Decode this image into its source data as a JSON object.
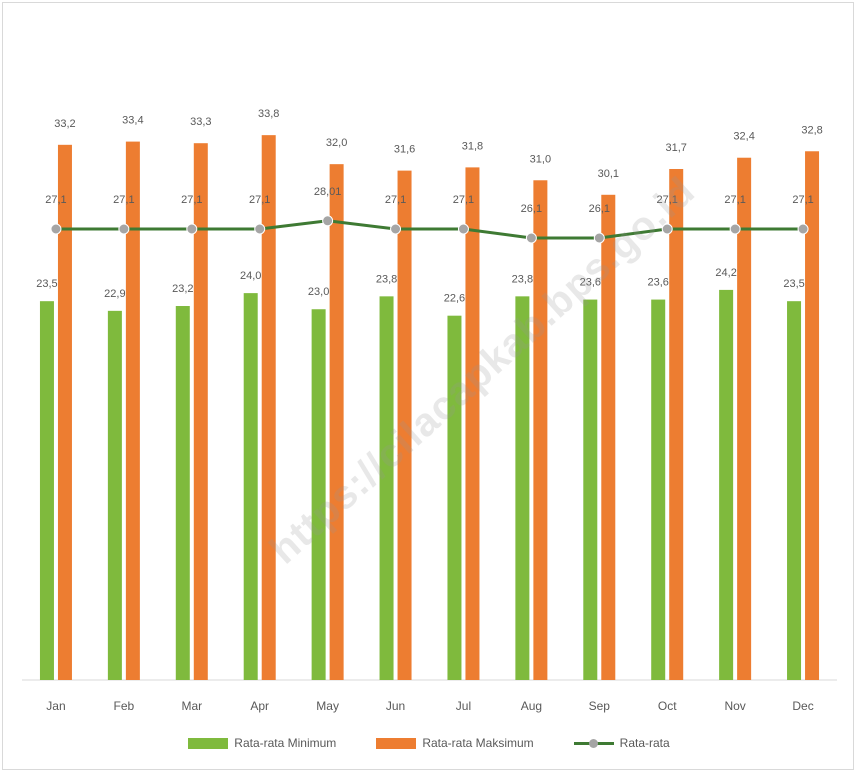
{
  "chart_data": {
    "type": "bar",
    "categories": [
      "Jan",
      "Feb",
      "Mar",
      "Apr",
      "May",
      "Jun",
      "Jul",
      "Aug",
      "Sep",
      "Oct",
      "Nov",
      "Dec"
    ],
    "series": [
      {
        "name": "Rata-rata Minimum",
        "type": "bar",
        "color": "#7fba3d",
        "values": [
          23.5,
          22.9,
          23.2,
          24.0,
          23.0,
          23.8,
          22.6,
          23.8,
          23.6,
          23.6,
          24.2,
          23.5
        ],
        "labels": [
          "23,5",
          "22,9",
          "23,2",
          "24,0",
          "23,0",
          "23,8",
          "22,6",
          "23,8",
          "23,6",
          "23,6",
          "24,2",
          "23,5"
        ]
      },
      {
        "name": "Rata-rata Maksimum",
        "type": "bar",
        "color": "#ed7d31",
        "values": [
          33.2,
          33.4,
          33.3,
          33.8,
          32.0,
          31.6,
          31.8,
          31.0,
          30.1,
          31.7,
          32.4,
          32.8
        ],
        "labels": [
          "33,2",
          "33,4",
          "33,3",
          "33,8",
          "32,0",
          "31,6",
          "31,8",
          "31,0",
          "30,1",
          "31,7",
          "32,4",
          "32,8"
        ]
      },
      {
        "name": "Rata-rata",
        "type": "line",
        "color": "#3e7a33",
        "marker_color": "#a5a5a5",
        "values": [
          27.1,
          27.1,
          27.1,
          27.1,
          28.01,
          27.1,
          27.1,
          26.1,
          26.1,
          27.1,
          27.1,
          27.1
        ],
        "labels": [
          "27,1",
          "27,1",
          "27,1",
          "27,1",
          "28,01",
          "27,1",
          "27,1",
          "26,1",
          "26,1",
          "27,1",
          "27,1",
          "27,1"
        ]
      }
    ],
    "legend_position": "bottom",
    "grid": false
  },
  "watermark": "https://cilacapkab.bps.go.id"
}
